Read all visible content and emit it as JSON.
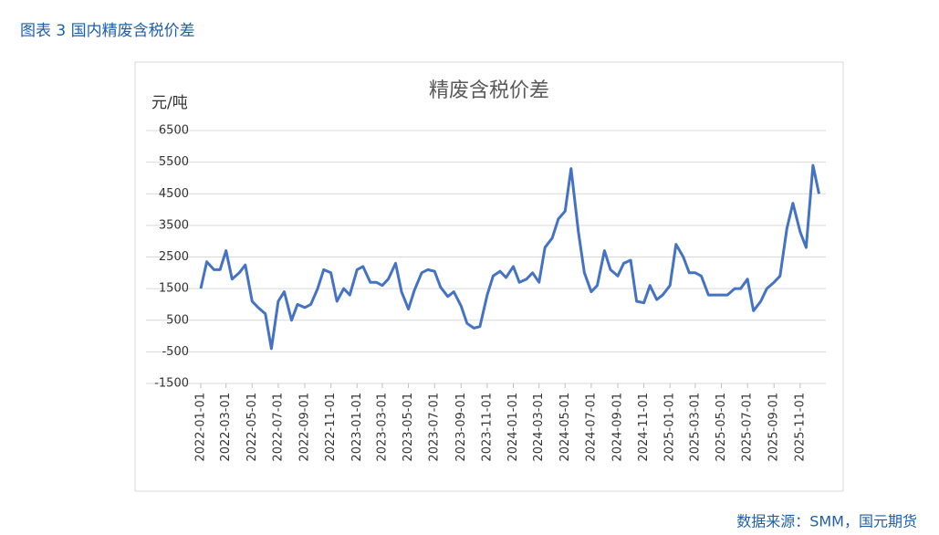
{
  "header": {
    "title": "图表 3 国内精废含税价差"
  },
  "chart_data": {
    "type": "line",
    "title": "精废含税价差",
    "ylabel": "元/吨",
    "x": [
      "2022-01-01",
      "2022-01-15",
      "2022-02-01",
      "2022-02-15",
      "2022-03-01",
      "2022-03-15",
      "2022-04-01",
      "2022-04-15",
      "2022-05-01",
      "2022-05-15",
      "2022-06-01",
      "2022-06-15",
      "2022-07-01",
      "2022-07-15",
      "2022-08-01",
      "2022-08-15",
      "2022-09-01",
      "2022-09-15",
      "2022-10-01",
      "2022-10-15",
      "2022-11-01",
      "2022-11-15",
      "2022-12-01",
      "2022-12-15",
      "2023-01-01",
      "2023-01-15",
      "2023-02-01",
      "2023-02-15",
      "2023-03-01",
      "2023-03-15",
      "2023-04-01",
      "2023-04-15",
      "2023-05-01",
      "2023-05-15",
      "2023-06-01",
      "2023-06-15",
      "2023-07-01",
      "2023-07-15",
      "2023-08-01",
      "2023-08-15",
      "2023-09-01",
      "2023-09-15",
      "2023-10-01",
      "2023-10-15",
      "2023-11-01",
      "2023-11-15",
      "2023-12-01",
      "2023-12-15",
      "2024-01-01",
      "2024-01-15",
      "2024-02-01",
      "2024-02-15",
      "2024-03-01",
      "2024-03-15",
      "2024-04-01",
      "2024-04-15",
      "2024-05-01",
      "2024-05-15",
      "2024-06-01",
      "2024-06-15",
      "2024-07-01",
      "2024-07-15",
      "2024-08-01",
      "2024-08-15",
      "2024-09-01",
      "2024-09-15",
      "2024-10-01",
      "2024-10-15",
      "2024-11-01",
      "2024-11-15",
      "2024-12-01",
      "2024-12-15",
      "2025-01-01",
      "2025-01-15",
      "2025-02-01",
      "2025-02-15",
      "2025-03-01",
      "2025-03-15",
      "2025-04-01",
      "2025-04-15",
      "2025-05-01",
      "2025-05-15",
      "2025-06-01",
      "2025-06-15",
      "2025-07-01",
      "2025-07-15",
      "2025-08-01",
      "2025-08-15",
      "2025-09-01",
      "2025-09-15",
      "2025-10-01",
      "2025-10-15",
      "2025-11-01",
      "2025-11-15",
      "2025-12-01",
      "2025-12-15"
    ],
    "series": [
      {
        "name": "精废含税价差",
        "color": "#4472c4",
        "values": [
          1500,
          2350,
          2100,
          2100,
          2700,
          1800,
          2000,
          2250,
          1100,
          900,
          700,
          -400,
          1100,
          1400,
          500,
          1000,
          900,
          1000,
          1500,
          2100,
          2000,
          1100,
          1500,
          1300,
          2100,
          2200,
          1700,
          1700,
          1600,
          1800,
          2300,
          1400,
          850,
          1450,
          2000,
          2100,
          2050,
          1550,
          1250,
          1400,
          950,
          400,
          250,
          300,
          1300,
          1900,
          2050,
          1850,
          2200,
          1700,
          1800,
          2000,
          1700,
          2800,
          3100,
          3700,
          3950,
          5300,
          3300,
          2000,
          1400,
          1600,
          2700,
          2100,
          1900,
          2300,
          2400,
          1100,
          1050,
          1600,
          1150,
          1300,
          1600,
          2900,
          2500,
          2000,
          2000,
          1900,
          1300,
          1300,
          1300,
          1300,
          1500,
          1500,
          1800,
          800,
          1100,
          1500,
          1700,
          1900,
          3400,
          4200,
          3300,
          2800,
          5400,
          4500
        ]
      }
    ],
    "xlim": [
      "2022-01-01",
      "2025-12-31"
    ],
    "xticks": [
      "2022-01-01",
      "2022-03-01",
      "2022-05-01",
      "2022-07-01",
      "2022-09-01",
      "2022-11-01",
      "2023-01-01",
      "2023-03-01",
      "2023-05-01",
      "2023-07-01",
      "2023-09-01",
      "2023-11-01",
      "2024-01-01",
      "2024-03-01",
      "2024-05-01",
      "2024-07-01",
      "2024-09-01",
      "2024-11-01",
      "2025-01-01",
      "2025-03-01",
      "2025-05-01",
      "2025-07-01",
      "2025-09-01",
      "2025-11-01"
    ],
    "ylim": [
      -1500,
      6500
    ],
    "yticks": [
      -1500,
      -500,
      500,
      1500,
      2500,
      3500,
      4500,
      5500,
      6500
    ],
    "grid": true
  },
  "footer": {
    "source": "数据来源：SMM，国元期货"
  }
}
